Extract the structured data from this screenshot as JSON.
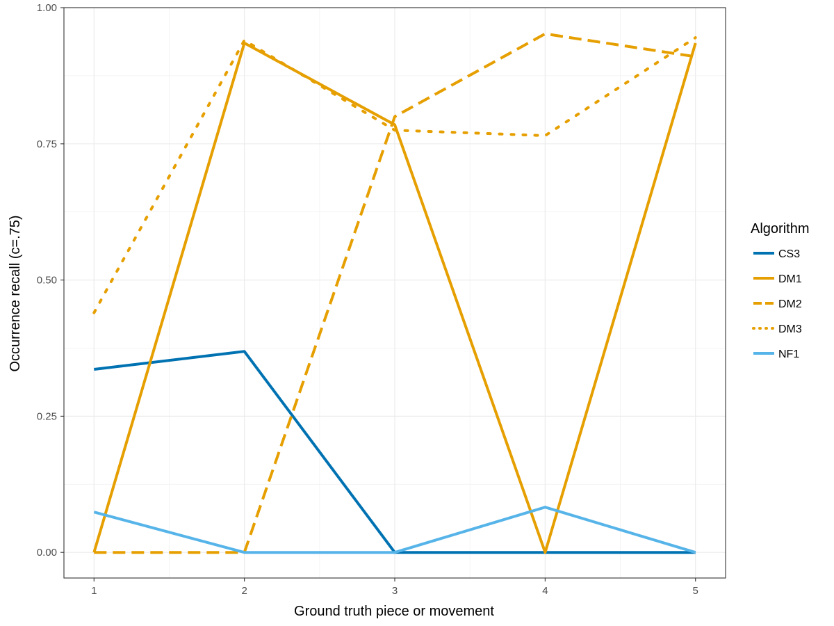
{
  "chart_data": {
    "type": "line",
    "title": "",
    "xlabel": "Ground truth piece or movement",
    "ylabel": "Occurrence recall (c=.75)",
    "x": [
      1,
      2,
      3,
      4,
      5
    ],
    "xticks": [
      "1",
      "2",
      "3",
      "4",
      "5"
    ],
    "yticks": [
      "0.00",
      "0.25",
      "0.50",
      "0.75",
      "1.00"
    ],
    "xlim": [
      0.8,
      5.2
    ],
    "ylim": [
      -0.047,
      1.0
    ],
    "grid": true,
    "legend": {
      "title": "Algorithm",
      "position": "right"
    },
    "series": [
      {
        "name": "CS3",
        "values": [
          0.336,
          0.369,
          0.0,
          0.0,
          0.0
        ],
        "color": "#0072B2",
        "dash": "solid"
      },
      {
        "name": "DM1",
        "values": [
          0.0,
          0.935,
          0.785,
          0.0,
          0.935
        ],
        "color": "#E69F00",
        "dash": "solid"
      },
      {
        "name": "DM2",
        "values": [
          0.0,
          0.0,
          0.8,
          0.952,
          0.91
        ],
        "color": "#E69F00",
        "dash": "dashed"
      },
      {
        "name": "DM3",
        "values": [
          0.44,
          0.94,
          0.775,
          0.765,
          0.945
        ],
        "color": "#E69F00",
        "dash": "dotted"
      },
      {
        "name": "NF1",
        "values": [
          0.074,
          0.0,
          0.0,
          0.083,
          0.0
        ],
        "color": "#56B4E9",
        "dash": "solid"
      }
    ]
  }
}
